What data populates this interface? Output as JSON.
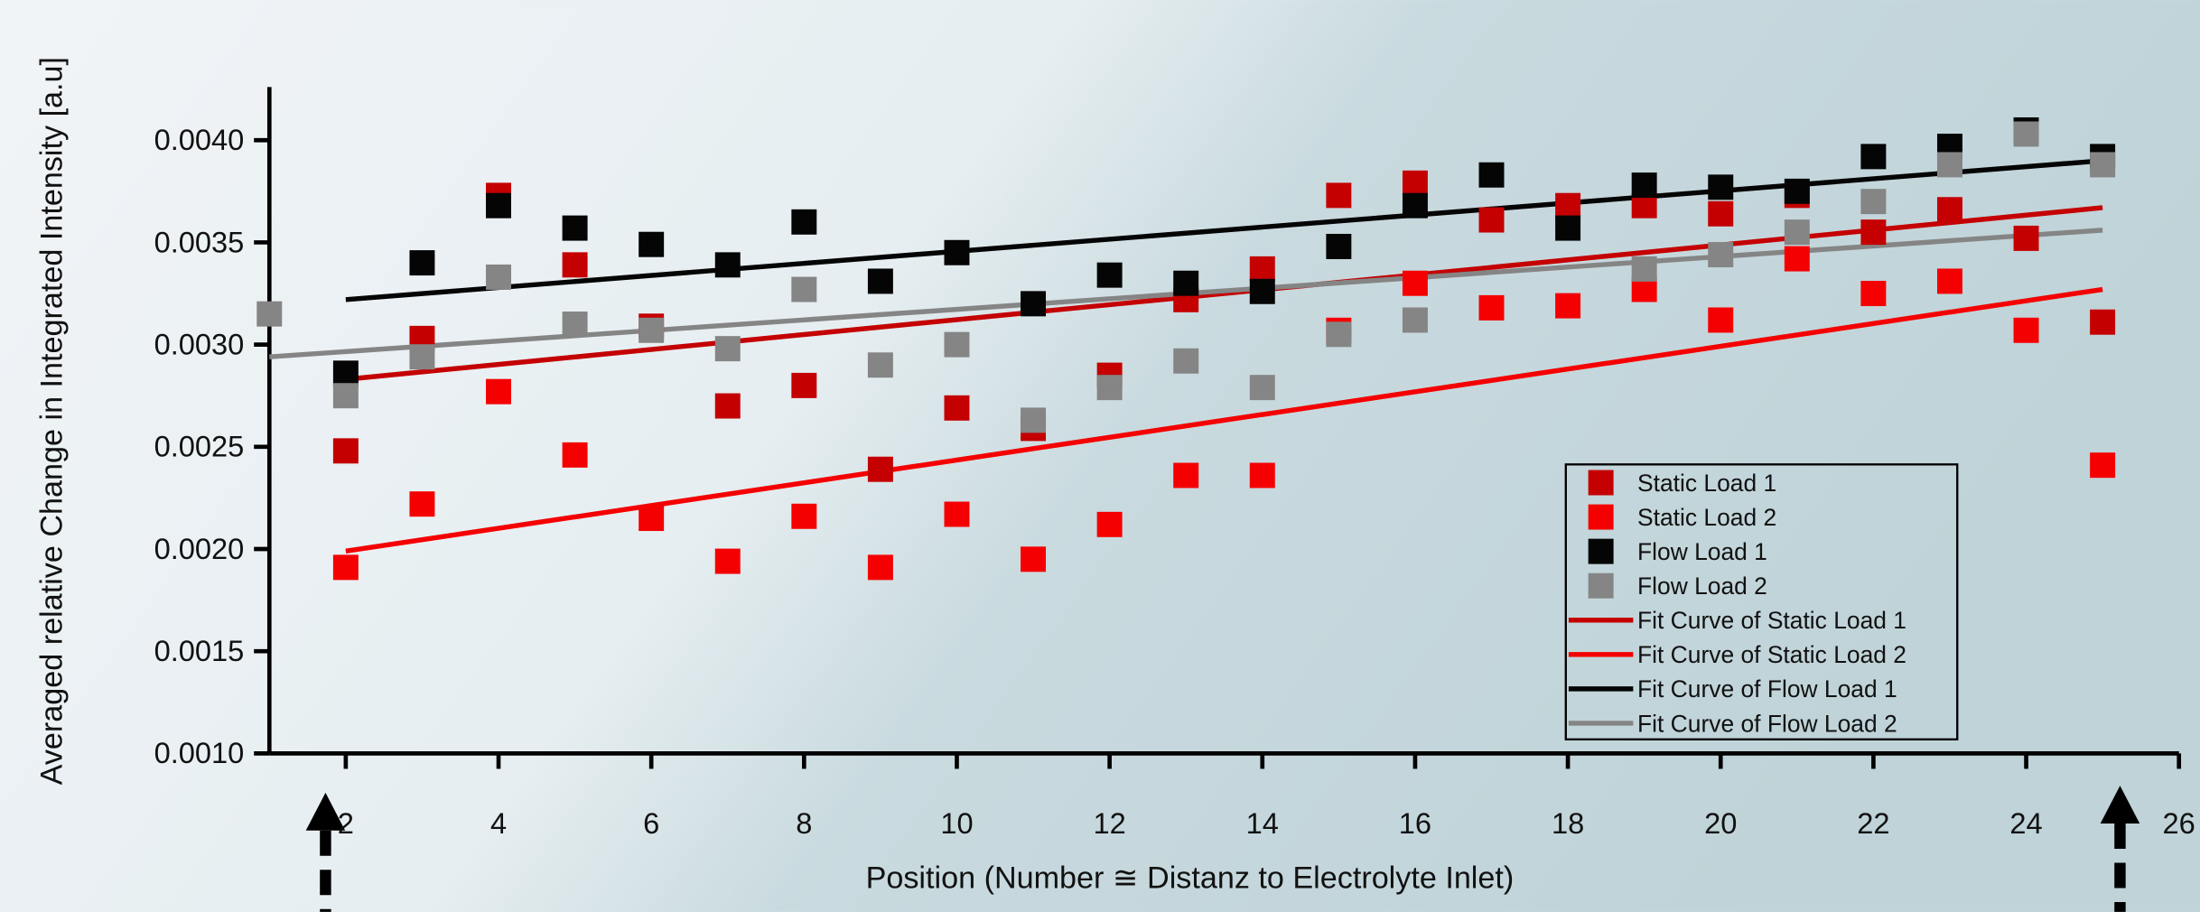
{
  "chart_data": {
    "type": "scatter",
    "x_label": "Position (Number ≅ Distanz to Electrolyte Inlet)",
    "y_label": "Averaged relative Change in Integrated Intensity [a.u]",
    "xlim": [
      1,
      26
    ],
    "xticks": [
      2,
      4,
      6,
      8,
      10,
      12,
      14,
      16,
      18,
      20,
      22,
      24,
      26
    ],
    "ylim": [
      0.001,
      0.00426
    ],
    "yticks": [
      {
        "value": 0.001,
        "label": "0.0010"
      },
      {
        "value": 0.0015,
        "label": "0.0015"
      },
      {
        "value": 0.002,
        "label": "0.0020"
      },
      {
        "value": 0.0025,
        "label": "0.0025"
      },
      {
        "value": 0.003,
        "label": "0.0030"
      },
      {
        "value": 0.0035,
        "label": "0.0035"
      },
      {
        "value": 0.004,
        "label": "0.0040"
      }
    ],
    "legend": "bottom-right",
    "series": [
      {
        "name": "Static Load 1",
        "color": "#c40000",
        "style": "markers",
        "x": [
          2,
          3,
          4,
          5,
          6,
          7,
          8,
          9,
          10,
          11,
          12,
          13,
          14,
          15,
          16,
          17,
          18,
          19,
          20,
          21,
          22,
          23,
          24,
          25
        ],
        "values": [
          0.00248,
          0.00303,
          0.00373,
          0.00339,
          0.00309,
          0.0027,
          0.0028,
          0.00239,
          0.00269,
          0.00259,
          0.00285,
          0.00322,
          0.00337,
          0.00373,
          0.00379,
          0.00361,
          0.00368,
          0.00368,
          0.00364,
          0.00373,
          0.00355,
          0.00366,
          0.00352,
          0.00311
        ]
      },
      {
        "name": "Static Load 2",
        "color": "#f50000",
        "style": "markers",
        "x": [
          2,
          3,
          4,
          5,
          6,
          7,
          8,
          9,
          10,
          11,
          12,
          13,
          14,
          15,
          16,
          17,
          18,
          19,
          20,
          21,
          22,
          23,
          24,
          25
        ],
        "values": [
          0.00191,
          0.00222,
          0.00277,
          0.00246,
          0.00215,
          0.00194,
          0.00216,
          0.00191,
          0.00217,
          0.00195,
          0.00212,
          0.00236,
          0.00236,
          0.00307,
          0.0033,
          0.00318,
          0.00319,
          0.00327,
          0.00312,
          0.00342,
          0.00325,
          0.00331,
          0.00307,
          0.00241
        ]
      },
      {
        "name": "Flow Load 1",
        "color": "#050505",
        "style": "markers",
        "x": [
          2,
          3,
          4,
          5,
          6,
          7,
          8,
          9,
          10,
          11,
          12,
          13,
          14,
          15,
          16,
          17,
          18,
          19,
          20,
          21,
          22,
          23,
          24,
          25
        ],
        "values": [
          0.00286,
          0.0034,
          0.00368,
          0.00357,
          0.00349,
          0.00339,
          0.0036,
          0.00331,
          0.00345,
          0.0032,
          0.00334,
          0.0033,
          0.00326,
          0.00348,
          0.00368,
          0.00383,
          0.00357,
          0.00378,
          0.00377,
          0.00375,
          0.00392,
          0.00397,
          0.00405,
          0.00392
        ]
      },
      {
        "name": "Flow Load 2",
        "color": "#858585",
        "style": "markers",
        "x": [
          1,
          2,
          3,
          4,
          5,
          6,
          7,
          8,
          9,
          10,
          11,
          12,
          13,
          14,
          15,
          16,
          19,
          20,
          21,
          22,
          23,
          24,
          25
        ],
        "values": [
          0.00315,
          0.00275,
          0.00294,
          0.00333,
          0.0031,
          0.00307,
          0.00298,
          0.00327,
          0.0029,
          0.003,
          0.00263,
          0.00279,
          0.00292,
          0.00279,
          0.00305,
          0.00312,
          0.00337,
          0.00344,
          0.00355,
          0.0037,
          0.00388,
          0.00403,
          0.00388
        ]
      },
      {
        "name": "Fit Curve of Static Load 1",
        "color": "#c40000",
        "style": "line",
        "x": [
          2,
          25
        ],
        "values": [
          0.00283,
          0.00367
        ]
      },
      {
        "name": "Fit Curve of Static Load 2",
        "color": "#f50000",
        "style": "line",
        "x": [
          2,
          25
        ],
        "values": [
          0.00199,
          0.00327
        ]
      },
      {
        "name": "Fit Curve of Flow Load 1",
        "color": "#050505",
        "style": "line",
        "x": [
          2,
          25
        ],
        "values": [
          0.00322,
          0.0039
        ]
      },
      {
        "name": "Fit Curve of Flow Load 2",
        "color": "#858585",
        "style": "line",
        "x": [
          1,
          25
        ],
        "values": [
          0.00294,
          0.00356
        ]
      }
    ]
  }
}
